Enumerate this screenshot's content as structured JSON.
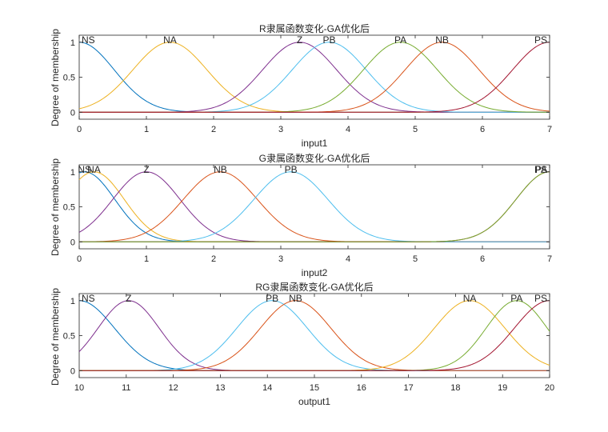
{
  "chart_data": [
    {
      "type": "line",
      "title": "R隶属函数变化-GA优化后",
      "xlabel": "input1",
      "ylabel": "Degree of membership",
      "xlim": [
        0,
        7
      ],
      "ylim": [
        -0.1,
        1.1
      ],
      "xticks": [
        "0",
        "1",
        "2",
        "3",
        "4",
        "5",
        "6",
        "7"
      ],
      "yticks": [
        "0",
        "0.5",
        "1"
      ],
      "grid": false,
      "series": [
        {
          "name": "NS",
          "color": "#0072BD",
          "peak": 0,
          "sigma": 0.52
        },
        {
          "name": "NA",
          "color": "#EDB120",
          "peak": 1.35,
          "sigma": 0.55
        },
        {
          "name": "Z",
          "color": "#7E2F8E",
          "peak": 3.28,
          "sigma": 0.55
        },
        {
          "name": "PB",
          "color": "#4DBEEE",
          "peak": 3.72,
          "sigma": 0.55
        },
        {
          "name": "PA",
          "color": "#77AC30",
          "peak": 4.78,
          "sigma": 0.55
        },
        {
          "name": "NB",
          "color": "#D95319",
          "peak": 5.4,
          "sigma": 0.55
        },
        {
          "name": "PS",
          "color": "#A2142F",
          "peak": 7,
          "sigma": 0.55
        }
      ]
    },
    {
      "type": "line",
      "title": "G隶属函数变化-GA优化后",
      "xlabel": "input2",
      "ylabel": "Degree of membership",
      "xlim": [
        0,
        7
      ],
      "ylim": [
        -0.1,
        1.1
      ],
      "xticks": [
        "0",
        "1",
        "2",
        "3",
        "4",
        "5",
        "6",
        "7"
      ],
      "yticks": [
        "0",
        "0.5",
        "1"
      ],
      "grid": false,
      "series": [
        {
          "name": "NS",
          "color": "#0072BD",
          "peak": 0.08,
          "sigma": 0.45
        },
        {
          "name": "NA",
          "color": "#EDB120",
          "peak": 0.22,
          "sigma": 0.45
        },
        {
          "name": "Z",
          "color": "#7E2F8E",
          "peak": 1.0,
          "sigma": 0.5
        },
        {
          "name": "NB",
          "color": "#D95319",
          "peak": 2.1,
          "sigma": 0.55
        },
        {
          "name": "PB",
          "color": "#4DBEEE",
          "peak": 3.15,
          "sigma": 0.55
        },
        {
          "name": "PS",
          "color": "#A2142F",
          "peak": 7,
          "sigma": 0.5
        },
        {
          "name": "PA",
          "color": "#77AC30",
          "peak": 7,
          "sigma": 0.5
        }
      ]
    },
    {
      "type": "line",
      "title": "RG隶属函数变化-GA优化后",
      "xlabel": "output1",
      "ylabel": "Degree of membership",
      "xlim": [
        10,
        20
      ],
      "ylim": [
        -0.1,
        1.1
      ],
      "xticks": [
        "10",
        "11",
        "12",
        "13",
        "14",
        "15",
        "16",
        "17",
        "18",
        "19",
        "20"
      ],
      "yticks": [
        "0",
        "0.5",
        "1"
      ],
      "grid": false,
      "series": [
        {
          "name": "NS",
          "color": "#0072BD",
          "peak": 10,
          "sigma": 0.75
        },
        {
          "name": "Z",
          "color": "#7E2F8E",
          "peak": 11.05,
          "sigma": 0.65
        },
        {
          "name": "PB",
          "color": "#4DBEEE",
          "peak": 14.1,
          "sigma": 0.75
        },
        {
          "name": "NB",
          "color": "#D95319",
          "peak": 14.6,
          "sigma": 0.75
        },
        {
          "name": "NA",
          "color": "#EDB120",
          "peak": 18.3,
          "sigma": 0.75
        },
        {
          "name": "PA",
          "color": "#77AC30",
          "peak": 19.3,
          "sigma": 0.65
        },
        {
          "name": "PS",
          "color": "#A2142F",
          "peak": 20,
          "sigma": 0.75
        }
      ]
    }
  ]
}
